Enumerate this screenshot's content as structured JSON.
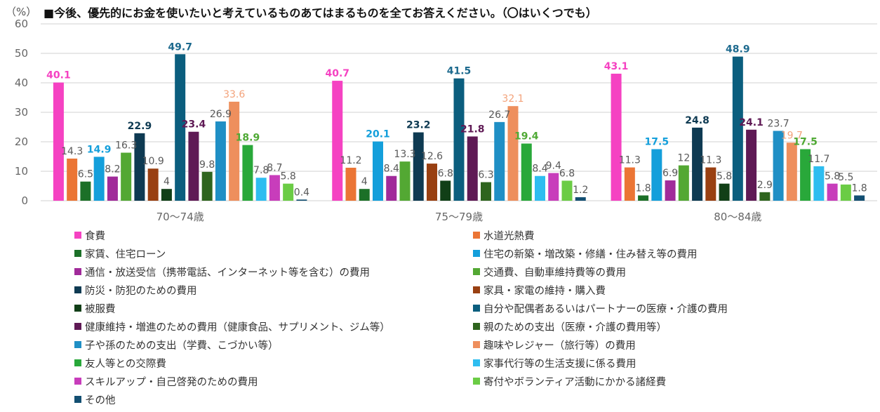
{
  "title": {
    "unit": "（%）",
    "text": "■今後、優先的にお金を使いたいと考えているものあてはまるものを全てお答えください。（〇はいくつでも）"
  },
  "chart_data": {
    "type": "bar",
    "title": "■今後、優先的にお金を使いたいと考えているものあてはまるものを全てお答えください。（〇はいくつでも）",
    "xlabel": "",
    "ylabel": "（%）",
    "ylim": [
      0,
      60
    ],
    "yticks": [
      0,
      10,
      20,
      30,
      40,
      50,
      60
    ],
    "grid": true,
    "legend_position": "bottom",
    "categories": [
      "70～74歳",
      "75～79歳",
      "80～84歳"
    ],
    "series": [
      {
        "name": "食費",
        "color": "#F542C2",
        "label_color": "#F542C2",
        "label_bold": true,
        "values": [
          40.1,
          40.7,
          43.1
        ]
      },
      {
        "name": "水道光熱費",
        "color": "#EB7535",
        "label_color": "#595959",
        "label_bold": false,
        "values": [
          14.3,
          11.2,
          11.3
        ]
      },
      {
        "name": "家賃、住宅ローン",
        "color": "#1C7028",
        "label_color": "#595959",
        "label_bold": false,
        "values": [
          6.5,
          4,
          1.8
        ]
      },
      {
        "name": "住宅の新築・増改築・修繕・住み替え等の費用",
        "color": "#149FDB",
        "label_color": "#149FDB",
        "label_bold": true,
        "values": [
          14.9,
          20.1,
          17.5
        ]
      },
      {
        "name": "通信・放送受信（携帯電話、インターネット等を含む）の費用",
        "color": "#A12B9A",
        "label_color": "#595959",
        "label_bold": false,
        "values": [
          8.2,
          8.4,
          6.9
        ]
      },
      {
        "name": "交通費、自動車維持費等の費用",
        "color": "#53A833",
        "label_color": "#595959",
        "label_bold": false,
        "values": [
          16.3,
          13.3,
          12
        ]
      },
      {
        "name": "防災・防犯のための費用",
        "color": "#0E3A52",
        "label_color": "#0E3A52",
        "label_bold": true,
        "values": [
          22.9,
          23.2,
          24.8
        ]
      },
      {
        "name": "家具・家電の維持・購入費",
        "color": "#994012",
        "label_color": "#595959",
        "label_bold": false,
        "values": [
          10.9,
          12.6,
          11.3
        ]
      },
      {
        "name": "被服費",
        "color": "#113F17",
        "label_color": "#595959",
        "label_bold": false,
        "values": [
          4,
          6.8,
          5.8
        ]
      },
      {
        "name": "自分や配偶者あるいはパートナーの医療・介護の費用",
        "color": "#0B5E7E",
        "label_color": "#1D6A8E",
        "label_bold": true,
        "values": [
          49.7,
          41.5,
          48.9
        ]
      },
      {
        "name": "健康維持・増進のための費用（健康食品、サプリメント、ジム等）",
        "color": "#5F1A55",
        "label_color": "#5F1A55",
        "label_bold": true,
        "values": [
          23.4,
          21.8,
          24.1
        ]
      },
      {
        "name": "親のための支出（医療・介護の費用等）",
        "color": "#2E641E",
        "label_color": "#595959",
        "label_bold": false,
        "values": [
          9.8,
          6.3,
          2.9
        ]
      },
      {
        "name": "子や孫のための支出（学費、こづかい等）",
        "color": "#1F8FC5",
        "label_color": "#595959",
        "label_bold": false,
        "values": [
          26.9,
          26.7,
          23.7
        ]
      },
      {
        "name": "趣味やレジャー（旅行等）の費用",
        "color": "#EE8F5D",
        "label_color": "#F3A27A",
        "label_bold": false,
        "values": [
          33.6,
          32.1,
          19.7
        ]
      },
      {
        "name": "友人等との交際費",
        "color": "#29A83A",
        "label_color": "#4FA934",
        "label_bold": true,
        "values": [
          18.9,
          19.4,
          17.5
        ]
      },
      {
        "name": "家事代行等の生活支援に係る費用",
        "color": "#2EBDF0",
        "label_color": "#595959",
        "label_bold": false,
        "values": [
          7.8,
          8.4,
          11.7
        ]
      },
      {
        "name": "スキルアップ・自己啓発のための費用",
        "color": "#C83DBB",
        "label_color": "#595959",
        "label_bold": false,
        "values": [
          8.7,
          9.4,
          5.8
        ]
      },
      {
        "name": "寄付やボランティア活動にかかる諸経費",
        "color": "#6BCC45",
        "label_color": "#595959",
        "label_bold": false,
        "values": [
          5.8,
          6.8,
          5.5
        ]
      },
      {
        "name": "その他",
        "color": "#134F72",
        "label_color": "#595959",
        "label_bold": false,
        "values": [
          0.4,
          1.2,
          1.8
        ]
      }
    ]
  }
}
